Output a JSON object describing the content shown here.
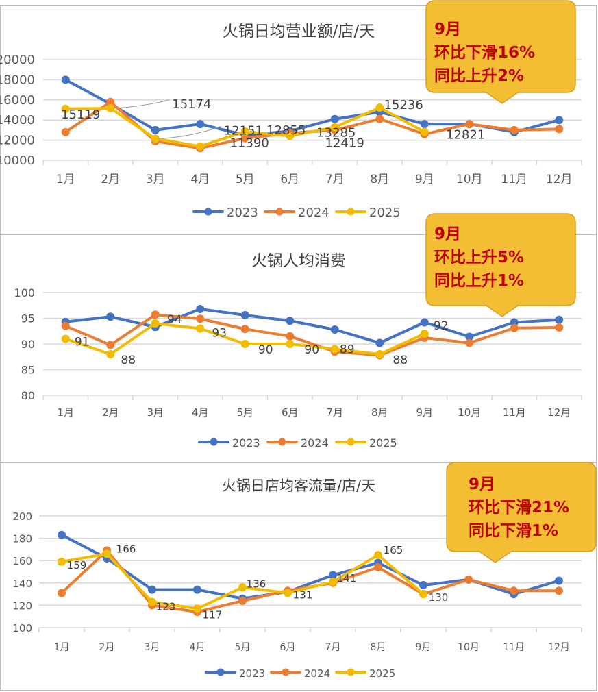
{
  "chart_data": [
    {
      "type": "line",
      "title": "火锅日均营业额/店/天",
      "categories": [
        "1月",
        "2月",
        "3月",
        "4月",
        "5月",
        "6月",
        "7月",
        "8月",
        "9月",
        "10月",
        "11月",
        "12月"
      ],
      "ylim": [
        10000,
        20000
      ],
      "yticks": [
        10000,
        12000,
        14000,
        16000,
        18000,
        20000
      ],
      "ytick_labels": [
        "10000",
        "12000",
        "14000",
        "16000",
        "18000",
        "20000"
      ],
      "grid": true,
      "legend": "bottom",
      "series": [
        {
          "name": "2023",
          "color": "#4472c4",
          "values": [
            18000,
            15600,
            13000,
            13600,
            12500,
            12900,
            14100,
            14800,
            13600,
            13600,
            12800,
            14000
          ]
        },
        {
          "name": "2024",
          "color": "#ed7d31",
          "values": [
            12800,
            15800,
            11900,
            11200,
            12200,
            12700,
            13000,
            14100,
            12600,
            13600,
            13000,
            13100
          ]
        },
        {
          "name": "2025",
          "color": "#f2bc00",
          "values": [
            15119,
            15174,
            12151,
            11390,
            12855,
            12419,
            13285,
            15236,
            12821
          ]
        }
      ],
      "data_labels": [
        {
          "series": "2025",
          "index": 0,
          "text": "15119"
        },
        {
          "series": "2025",
          "index": 1,
          "text": "15174"
        },
        {
          "series": "2025",
          "index": 2,
          "text": "12151"
        },
        {
          "series": "2025",
          "index": 3,
          "text": "11390"
        },
        {
          "series": "2025",
          "index": 4,
          "text": "12855"
        },
        {
          "series": "2025",
          "index": 5,
          "text": "12419"
        },
        {
          "series": "2025",
          "index": 6,
          "text": "13285"
        },
        {
          "series": "2025",
          "index": 7,
          "text": "15236"
        },
        {
          "series": "2025",
          "index": 8,
          "text": "12821"
        }
      ],
      "annotation": [
        "9月",
        "环比下滑16%",
        "同比上升2%"
      ]
    },
    {
      "type": "line",
      "title": "火锅人均消费",
      "categories": [
        "1月",
        "2月",
        "3月",
        "4月",
        "5月",
        "6月",
        "7月",
        "8月",
        "9月",
        "10月",
        "11月",
        "12月"
      ],
      "ylim": [
        80,
        100
      ],
      "yticks": [
        80,
        85,
        90,
        95,
        100
      ],
      "ytick_labels": [
        "80",
        "85",
        "90",
        "95",
        "100"
      ],
      "grid": true,
      "legend": "bottom",
      "series": [
        {
          "name": "2023",
          "color": "#4472c4",
          "values": [
            94.3,
            95.3,
            93.3,
            96.8,
            95.6,
            94.5,
            92.8,
            90.2,
            94.2,
            91.4,
            94.2,
            94.7
          ]
        },
        {
          "name": "2024",
          "color": "#ed7d31",
          "values": [
            93.5,
            89.8,
            95.7,
            94.9,
            92.9,
            91.5,
            88.5,
            87.8,
            91.2,
            90.2,
            93.1,
            93.2
          ]
        },
        {
          "name": "2025",
          "color": "#f2bc00",
          "values": [
            91,
            88,
            94,
            93,
            90,
            90,
            89,
            88,
            92
          ]
        }
      ],
      "data_labels": [
        {
          "series": "2025",
          "index": 0,
          "text": "91"
        },
        {
          "series": "2025",
          "index": 1,
          "text": "88"
        },
        {
          "series": "2025",
          "index": 2,
          "text": "94"
        },
        {
          "series": "2025",
          "index": 3,
          "text": "93"
        },
        {
          "series": "2025",
          "index": 4,
          "text": "90"
        },
        {
          "series": "2025",
          "index": 5,
          "text": "90"
        },
        {
          "series": "2025",
          "index": 6,
          "text": "89"
        },
        {
          "series": "2025",
          "index": 7,
          "text": "88"
        },
        {
          "series": "2025",
          "index": 8,
          "text": "92"
        }
      ],
      "annotation": [
        "9月",
        "环比上升5%",
        "同比上升1%"
      ]
    },
    {
      "type": "line",
      "title": "火锅日店均客流量/店/天",
      "categories": [
        "1月",
        "2月",
        "3月",
        "4月",
        "5月",
        "6月",
        "7月",
        "8月",
        "9月",
        "10月",
        "11月",
        "12月"
      ],
      "ylim": [
        100,
        200
      ],
      "yticks": [
        100,
        120,
        140,
        160,
        180,
        200
      ],
      "ytick_labels": [
        "100",
        "120",
        "140",
        "160",
        "180",
        "200"
      ],
      "grid": true,
      "legend": "bottom",
      "series": [
        {
          "name": "2023",
          "color": "#4472c4",
          "values": [
            183,
            162,
            134,
            134,
            126,
            132,
            147,
            158,
            138,
            143,
            130,
            142
          ]
        },
        {
          "name": "2024",
          "color": "#ed7d31",
          "values": [
            131,
            169,
            120,
            114,
            124,
            133,
            140,
            154,
            130,
            143,
            133,
            133
          ]
        },
        {
          "name": "2025",
          "color": "#f2bc00",
          "values": [
            159,
            166,
            123,
            117,
            136,
            131,
            141,
            165,
            130
          ]
        }
      ],
      "data_labels": [
        {
          "series": "2025",
          "index": 0,
          "text": "159"
        },
        {
          "series": "2025",
          "index": 1,
          "text": "166"
        },
        {
          "series": "2025",
          "index": 2,
          "text": "123"
        },
        {
          "series": "2025",
          "index": 3,
          "text": "117"
        },
        {
          "series": "2025",
          "index": 4,
          "text": "136"
        },
        {
          "series": "2025",
          "index": 5,
          "text": "131"
        },
        {
          "series": "2025",
          "index": 6,
          "text": "141"
        },
        {
          "series": "2025",
          "index": 7,
          "text": "165"
        },
        {
          "series": "2025",
          "index": 8,
          "text": "130"
        }
      ],
      "annotation": [
        "9月",
        "环比下滑21%",
        "同比下滑1%"
      ]
    }
  ]
}
